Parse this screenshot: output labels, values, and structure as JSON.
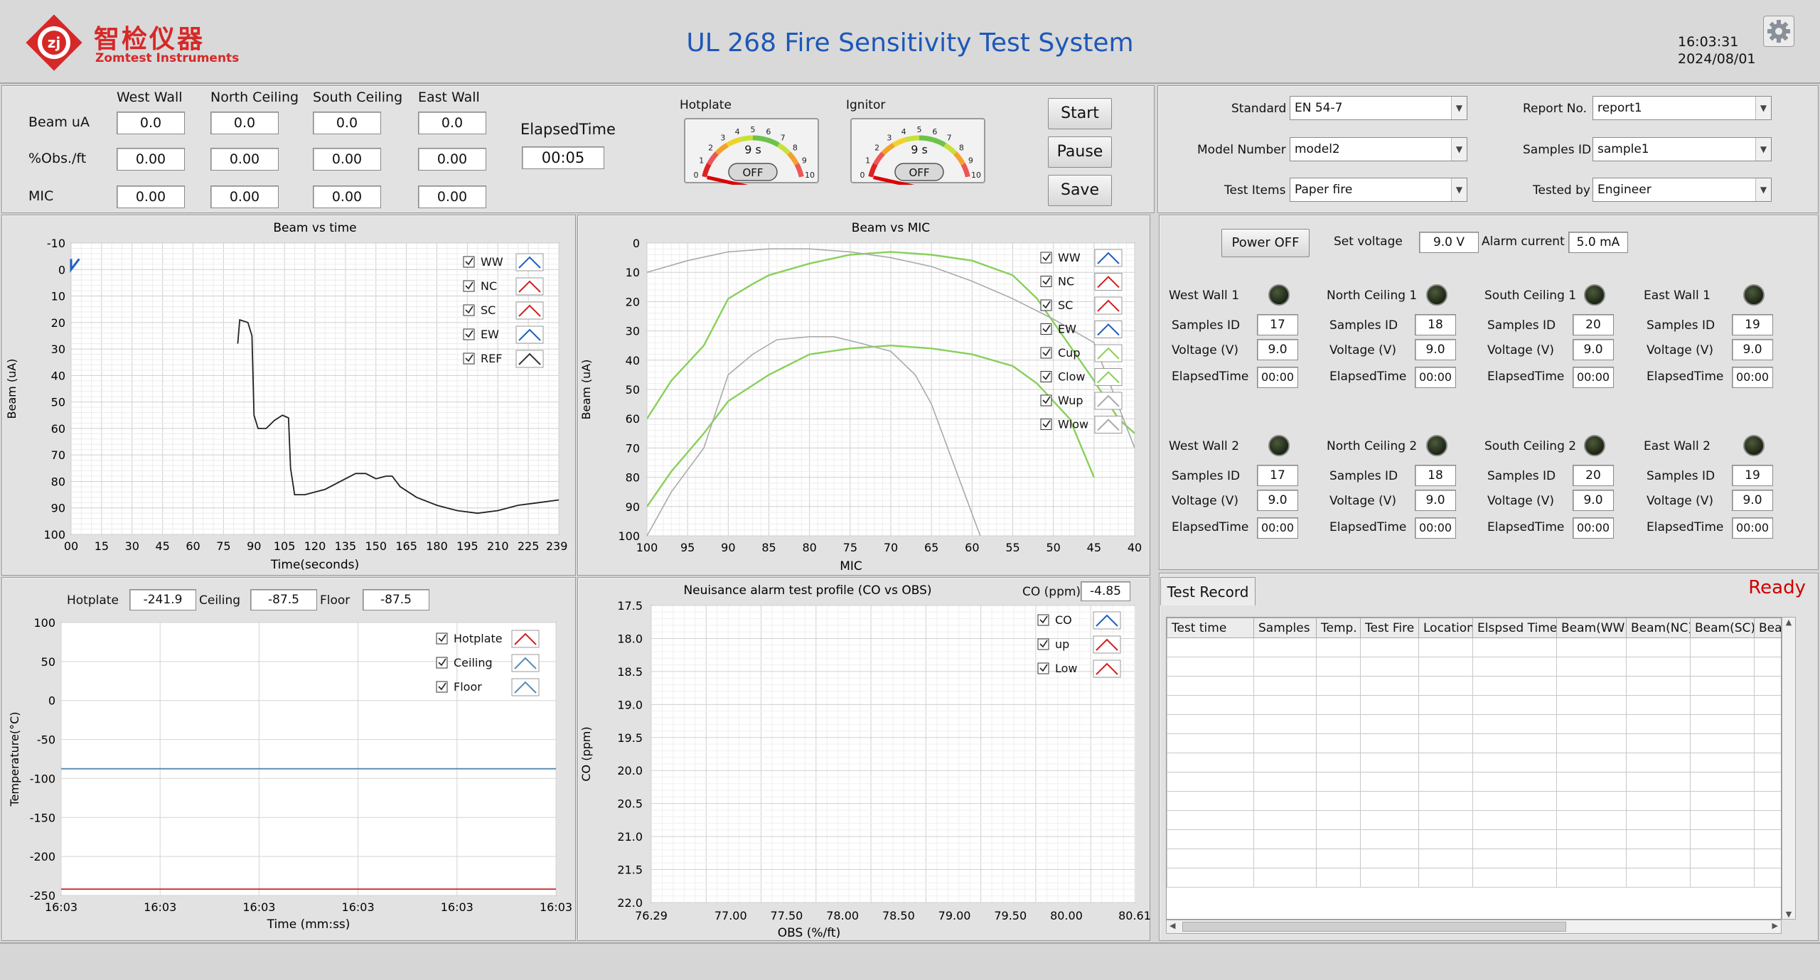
{
  "header": {
    "logo_cn": "智检仪器",
    "logo_en": "Zomtest Instruments",
    "title": "UL 268 Fire Sensitivity Test System",
    "time": "16:03:31",
    "date": "2024/08/01",
    "settings_icon": "gear-icon"
  },
  "readings": {
    "columns": [
      "West Wall",
      "North Ceiling",
      "South Ceiling",
      "East Wall"
    ],
    "rows": [
      {
        "label": "Beam uA",
        "values": [
          "0.0",
          "0.0",
          "0.0",
          "0.0"
        ]
      },
      {
        "label": "%Obs./ft",
        "values": [
          "0.00",
          "0.00",
          "0.00",
          "0.00"
        ]
      },
      {
        "label": "MIC",
        "values": [
          "0.00",
          "0.00",
          "0.00",
          "0.00"
        ]
      }
    ],
    "elapsed_label": "ElapsedTime",
    "elapsed_value": "00:05"
  },
  "gauges": [
    {
      "label": "Hotplate",
      "value_text": "9 s",
      "toggle": "OFF",
      "ticks": [
        "0",
        "1",
        "2",
        "3",
        "4",
        "5",
        "6",
        "7",
        "8",
        "9",
        "10"
      ],
      "value": 0
    },
    {
      "label": "Ignitor",
      "value_text": "9 s",
      "toggle": "OFF",
      "ticks": [
        "0",
        "1",
        "2",
        "3",
        "4",
        "5",
        "6",
        "7",
        "8",
        "9",
        "10"
      ],
      "value": 0
    }
  ],
  "controls": {
    "start": "Start",
    "pause": "Pause",
    "save": "Save"
  },
  "settings": {
    "standard_label": "Standard",
    "standard_value": "EN 54-7",
    "model_label": "Model Number",
    "model_value": "model2",
    "items_label": "Test Items",
    "items_value": "Paper fire",
    "report_label": "Report No.",
    "report_value": "report1",
    "samples_label": "Samples ID",
    "samples_value": "sample1",
    "tested_label": "Tested by",
    "tested_value": "Engineer"
  },
  "power": {
    "button": "Power OFF",
    "set_voltage_label": "Set voltage",
    "set_voltage_value": "9.0 V",
    "alarm_current_label": "Alarm current",
    "alarm_current_value": "5.0 mA"
  },
  "detectors": [
    {
      "name": "West Wall 1",
      "samples": "17",
      "voltage": "9.0",
      "elapsed": "00:00"
    },
    {
      "name": "North Ceiling 1",
      "samples": "18",
      "voltage": "9.0",
      "elapsed": "00:00"
    },
    {
      "name": "South Ceiling 1",
      "samples": "20",
      "voltage": "9.0",
      "elapsed": "00:00"
    },
    {
      "name": "East Wall 1",
      "samples": "19",
      "voltage": "9.0",
      "elapsed": "00:00"
    },
    {
      "name": "West Wall 2",
      "samples": "17",
      "voltage": "9.0",
      "elapsed": "00:00"
    },
    {
      "name": "North Ceiling 2",
      "samples": "18",
      "voltage": "9.0",
      "elapsed": "00:00"
    },
    {
      "name": "South Ceiling 2",
      "samples": "20",
      "voltage": "9.0",
      "elapsed": "00:00"
    },
    {
      "name": "East Wall 2",
      "samples": "19",
      "voltage": "9.0",
      "elapsed": "00:00"
    }
  ],
  "detector_labels": {
    "samples": "Samples ID",
    "voltage": "Voltage (V)",
    "elapsed": "ElapsedTime"
  },
  "record": {
    "tab": "Test Record",
    "status": "Ready",
    "columns": [
      "Test time",
      "Samples",
      "Temp.",
      "Test Fire",
      "Location",
      "Elspsed Time",
      "Beam(WW)",
      "Beam(NC)",
      "Beam(SC)",
      "Bea"
    ]
  },
  "temps": {
    "hotplate_label": "Hotplate",
    "hotplate_value": "-241.9",
    "ceiling_label": "Ceiling",
    "ceiling_value": "-87.5",
    "floor_label": "Floor",
    "floor_value": "-87.5"
  },
  "co_readout": {
    "label": "CO (ppm)",
    "value": "-4.85"
  },
  "colors": {
    "blue": "#1f5fbf",
    "red": "#d22020",
    "gray": "#8a8a8a",
    "green": "#88d05a",
    "steel": "#5a8ab0"
  },
  "chart_data": [
    {
      "id": "beam_time",
      "type": "line",
      "title": "Beam vs time",
      "xlabel": "Time(seconds)",
      "ylabel": "Beam (uA)",
      "xlim": [
        0,
        240
      ],
      "ylim": [
        -10,
        100
      ],
      "y_inverted": true,
      "xticks": [
        "00",
        "15",
        "30",
        "45",
        "60",
        "75",
        "90",
        "105",
        "120",
        "135",
        "150",
        "165",
        "180",
        "195",
        "210",
        "225",
        "239"
      ],
      "yticks": [
        "-10",
        "0",
        "10",
        "20",
        "30",
        "40",
        "50",
        "60",
        "70",
        "80",
        "90",
        "100"
      ],
      "legend": [
        "WW",
        "NC",
        "SC",
        "EW",
        "REF"
      ],
      "series": [
        {
          "name": "WW",
          "color": "blue",
          "points": [
            [
              0,
              -4
            ],
            [
              0,
              0
            ],
            [
              4,
              -4
            ]
          ]
        },
        {
          "name": "REF",
          "color": "black",
          "points": [
            [
              82,
              28
            ],
            [
              83,
              19
            ],
            [
              87,
              20
            ],
            [
              89,
              25
            ],
            [
              90,
              55
            ],
            [
              92,
              60
            ],
            [
              96,
              60
            ],
            [
              100,
              57
            ],
            [
              104,
              55
            ],
            [
              107,
              56
            ],
            [
              108,
              75
            ],
            [
              110,
              85
            ],
            [
              115,
              85
            ],
            [
              125,
              83
            ],
            [
              135,
              79
            ],
            [
              140,
              77
            ],
            [
              145,
              77
            ],
            [
              150,
              79
            ],
            [
              155,
              78
            ],
            [
              158,
              78
            ],
            [
              162,
              82
            ],
            [
              170,
              86
            ],
            [
              180,
              89
            ],
            [
              190,
              91
            ],
            [
              200,
              92
            ],
            [
              210,
              91
            ],
            [
              220,
              89
            ],
            [
              230,
              88
            ],
            [
              240,
              87
            ]
          ]
        }
      ]
    },
    {
      "id": "beam_mic",
      "type": "line",
      "title": "Beam vs MIC",
      "xlabel": "MIC",
      "ylabel": "Beam (uA)",
      "xlim": [
        100,
        40
      ],
      "ylim": [
        0,
        100
      ],
      "y_inverted": true,
      "xticks": [
        "100",
        "95",
        "90",
        "85",
        "80",
        "75",
        "70",
        "65",
        "60",
        "55",
        "50",
        "45",
        "40"
      ],
      "yticks": [
        "0",
        "10",
        "20",
        "30",
        "40",
        "50",
        "60",
        "70",
        "80",
        "90",
        "100"
      ],
      "legend": [
        "WW",
        "NC",
        "SC",
        "EW",
        "Cup",
        "Clow",
        "Wup",
        "Wlow"
      ],
      "series": [
        {
          "name": "Cup",
          "color": "green",
          "points": [
            [
              100,
              60
            ],
            [
              97,
              47
            ],
            [
              93,
              35
            ],
            [
              90,
              19
            ],
            [
              87,
              14
            ],
            [
              85,
              11
            ],
            [
              80,
              7
            ],
            [
              75,
              4
            ],
            [
              70,
              3
            ],
            [
              65,
              4
            ],
            [
              60,
              6
            ],
            [
              55,
              11
            ],
            [
              52,
              19
            ],
            [
              48,
              35
            ],
            [
              45,
              47
            ],
            [
              42,
              60
            ],
            [
              40,
              65
            ]
          ]
        },
        {
          "name": "Clow",
          "color": "green",
          "points": [
            [
              100,
              90
            ],
            [
              97,
              78
            ],
            [
              93,
              65
            ],
            [
              90,
              54
            ],
            [
              85,
              45
            ],
            [
              80,
              38
            ],
            [
              75,
              36
            ],
            [
              70,
              35
            ],
            [
              65,
              36
            ],
            [
              60,
              38
            ],
            [
              55,
              42
            ],
            [
              52,
              48
            ],
            [
              48,
              60
            ],
            [
              45,
              80
            ]
          ]
        },
        {
          "name": "Wup",
          "color": "gray",
          "points": [
            [
              100,
              10
            ],
            [
              95,
              6
            ],
            [
              90,
              3
            ],
            [
              85,
              2
            ],
            [
              80,
              2
            ],
            [
              75,
              3
            ],
            [
              70,
              5
            ],
            [
              65,
              8
            ],
            [
              60,
              13
            ],
            [
              55,
              19
            ],
            [
              50,
              26
            ],
            [
              45,
              34
            ],
            [
              40,
              70
            ]
          ]
        },
        {
          "name": "Wlow",
          "color": "gray",
          "points": [
            [
              100,
              100
            ],
            [
              97,
              85
            ],
            [
              93,
              70
            ],
            [
              90,
              45
            ],
            [
              87,
              38
            ],
            [
              84,
              33
            ],
            [
              80,
              32
            ],
            [
              77,
              32
            ],
            [
              74,
              34
            ],
            [
              70,
              37
            ],
            [
              67,
              45
            ],
            [
              65,
              55
            ],
            [
              63,
              70
            ],
            [
              61,
              85
            ],
            [
              59,
              100
            ]
          ]
        }
      ]
    },
    {
      "id": "temperature",
      "type": "line",
      "title": "",
      "xlabel": "Time (mm:ss)",
      "ylabel": "Temperature(°C)",
      "ylim": [
        -250,
        100
      ],
      "xticks": [
        "16:03",
        "16:03",
        "16:03",
        "16:03",
        "16:03",
        "16:03"
      ],
      "yticks": [
        "100",
        "50",
        "0",
        "-50",
        "-100",
        "-150",
        "-200",
        "-250"
      ],
      "legend": [
        "Hotplate",
        "Ceiling",
        "Floor"
      ],
      "series": [
        {
          "name": "Hotplate",
          "color": "red",
          "y": -241.9
        },
        {
          "name": "Ceiling",
          "color": "steel",
          "y": -87.5
        },
        {
          "name": "Floor",
          "color": "steel",
          "y": -87.5
        }
      ]
    },
    {
      "id": "co_obs",
      "type": "line",
      "title": "Neuisance alarm test profile (CO vs OBS)",
      "xlabel": "OBS (%/ft)",
      "ylabel": "CO (ppm)",
      "xticks": [
        "76.29",
        "77.00",
        "77.50",
        "78.00",
        "78.50",
        "79.00",
        "79.50",
        "80.00",
        "80.61"
      ],
      "yticks": [
        "17.5",
        "18.0",
        "18.5",
        "19.0",
        "19.5",
        "20.0",
        "20.5",
        "21.0",
        "21.5",
        "22.0"
      ],
      "legend": [
        "CO",
        "up",
        "Low"
      ],
      "series": []
    }
  ]
}
